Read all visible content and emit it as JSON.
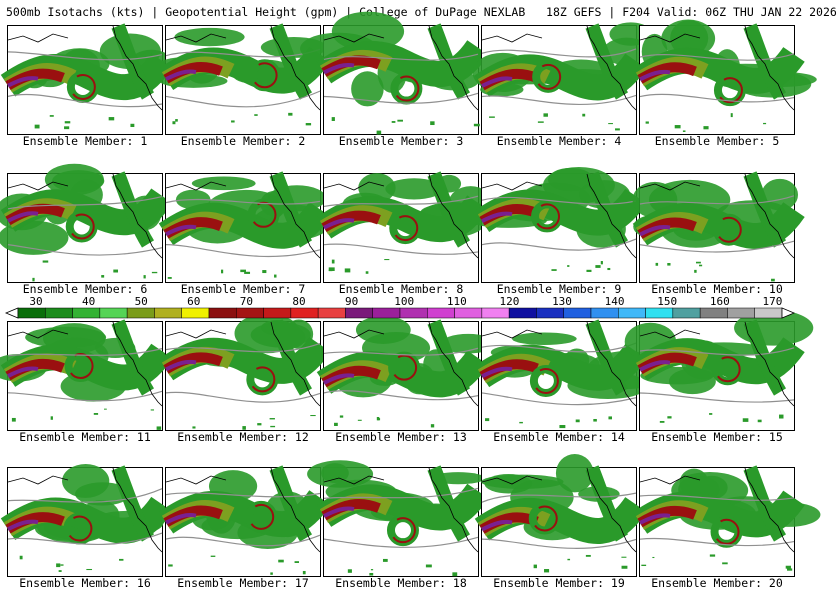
{
  "header": {
    "title": "500mb Isotachs (kts) | Geopotential Height (gpm) | College of DuPage NEXLAB   18Z GEFS | F204 Valid: 06Z THU JAN 22 2026"
  },
  "colorbar": {
    "labels": [
      "30",
      "40",
      "50",
      "60",
      "70",
      "80",
      "90",
      "100",
      "110",
      "120",
      "130",
      "140",
      "150",
      "160",
      "170"
    ],
    "colors": [
      "#0a6e0a",
      "#1c8c1c",
      "#33b233",
      "#55d455",
      "#7a9c1a",
      "#b0b020",
      "#f0f000",
      "#8b1010",
      "#a51414",
      "#c41a1a",
      "#e02020",
      "#e84040",
      "#7a1a7a",
      "#9a209a",
      "#b030b0",
      "#d040d0",
      "#e060e0",
      "#f080f0",
      "#1010a0",
      "#1a30c0",
      "#2060e0",
      "#3090f0",
      "#40b8f8",
      "#30e0f0",
      "#50a0a0",
      "#808080",
      "#a0a0a0",
      "#c8c8c8"
    ]
  },
  "panels": [
    {
      "label": "Ensemble Member: 1"
    },
    {
      "label": "Ensemble Member: 2"
    },
    {
      "label": "Ensemble Member: 3"
    },
    {
      "label": "Ensemble Member: 4"
    },
    {
      "label": "Ensemble Member: 5"
    },
    {
      "label": "Ensemble Member: 6"
    },
    {
      "label": "Ensemble Member: 7"
    },
    {
      "label": "Ensemble Member: 8"
    },
    {
      "label": "Ensemble Member: 9"
    },
    {
      "label": "Ensemble Member: 10"
    },
    {
      "label": "Ensemble Member: 11"
    },
    {
      "label": "Ensemble Member: 12"
    },
    {
      "label": "Ensemble Member: 13"
    },
    {
      "label": "Ensemble Member: 14"
    },
    {
      "label": "Ensemble Member: 15"
    },
    {
      "label": "Ensemble Member: 16"
    },
    {
      "label": "Ensemble Member: 17"
    },
    {
      "label": "Ensemble Member: 18"
    },
    {
      "label": "Ensemble Member: 19"
    },
    {
      "label": "Ensemble Member: 20"
    }
  ],
  "colors": {
    "low_wind": "#2a9a2a",
    "mid_wind": "#7da020",
    "high_wind": "#9a1010",
    "jet_core": "#7a2090",
    "height_contour": "#909090",
    "coastline": "#000000"
  }
}
